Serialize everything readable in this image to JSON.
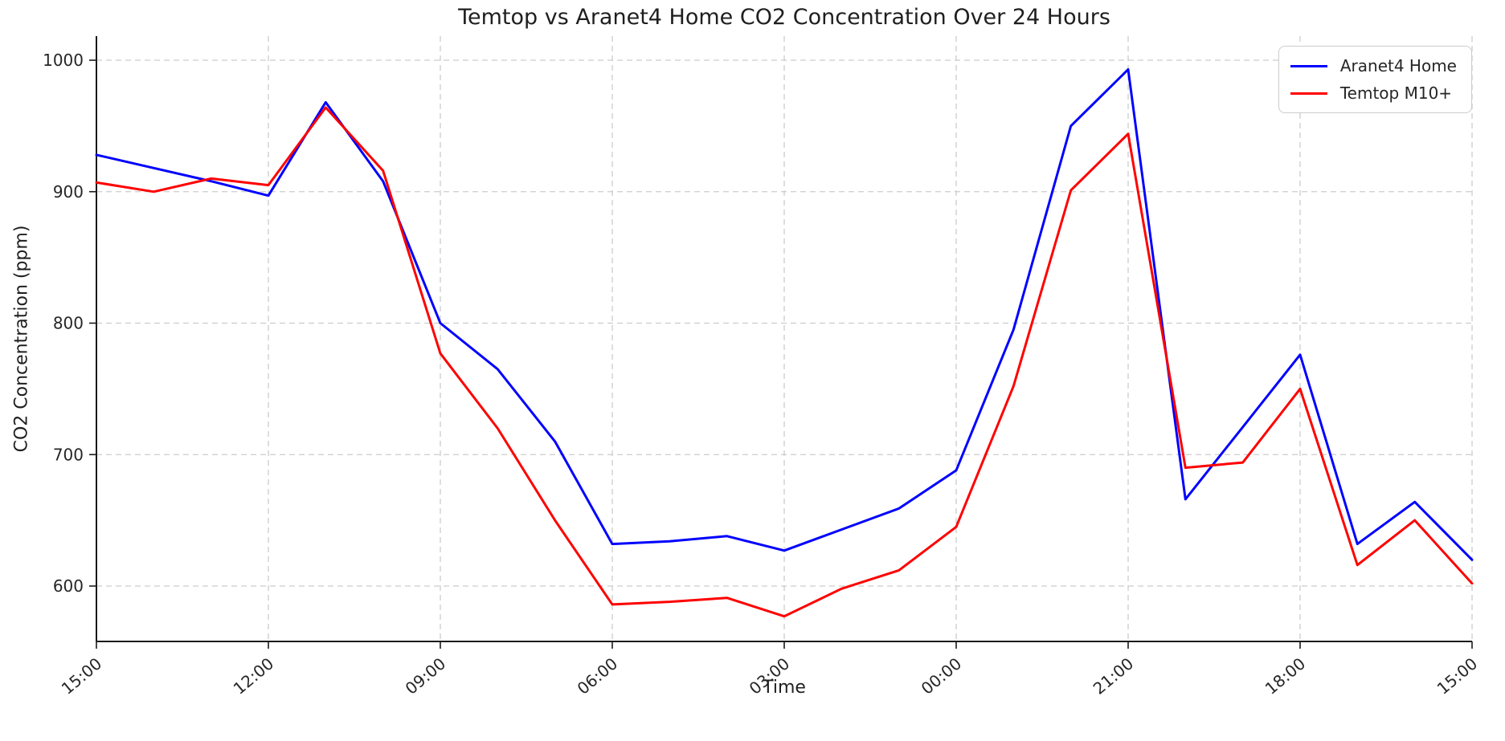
{
  "figure": {
    "background": "#ffffff",
    "text_color": "#262626",
    "grid_color": "#cccccc",
    "spine_color": "#1a1a1a"
  },
  "chart_data": {
    "type": "line",
    "title": "Temtop vs Aranet4 Home CO2 Concentration Over 24 Hours",
    "xlabel": "Time",
    "ylabel": "CO2 Concentration (ppm)",
    "x_tick_labels": [
      "15:00",
      "12:00",
      "09:00",
      "06:00",
      "03:00",
      "00:00",
      "21:00",
      "18:00",
      "15:00"
    ],
    "x_tick_hours": [
      0,
      3,
      6,
      9,
      12,
      15,
      18,
      21,
      24
    ],
    "sample_interval_hours": 1,
    "y_ticks": [
      600,
      700,
      800,
      900,
      1000
    ],
    "ylim": [
      558,
      1018
    ],
    "grid": "dashed",
    "legend_position": "upper right",
    "series": [
      {
        "name": "Aranet4 Home",
        "color": "#0000ff",
        "values": [
          928,
          918,
          908,
          897,
          968,
          908,
          800,
          765,
          710,
          632,
          634,
          638,
          627,
          643,
          659,
          688,
          795,
          950,
          993,
          666,
          721,
          776,
          632,
          664,
          620
        ]
      },
      {
        "name": "Temtop M10+",
        "color": "#ff0000",
        "values": [
          907,
          900,
          910,
          905,
          964,
          916,
          777,
          720,
          650,
          586,
          588,
          591,
          577,
          598,
          612,
          645,
          752,
          901,
          944,
          690,
          694,
          750,
          616,
          650,
          602
        ]
      }
    ]
  }
}
